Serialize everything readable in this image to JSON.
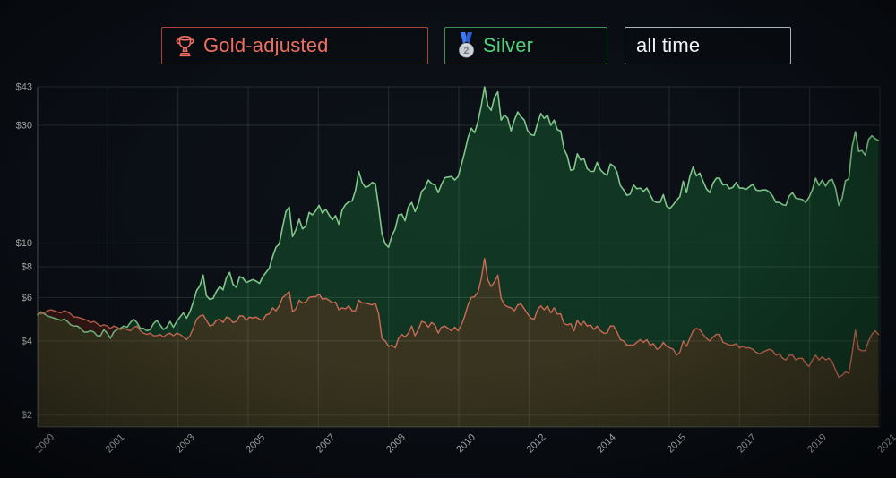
{
  "toolbar": {
    "buttons": [
      {
        "label": "Gold-adjusted",
        "icon": "trophy-icon",
        "text_color": "#ef6e62",
        "border_color": "#aa413c"
      },
      {
        "label": "Silver",
        "icon": "silver-medal-icon",
        "text_color": "#4ed07c",
        "border_color": "#3e8f58"
      },
      {
        "label": "all time",
        "icon": null,
        "text_color": "#f2f5f5",
        "border_color": "#a9b2b6"
      }
    ]
  },
  "chart_data": {
    "type": "area",
    "x_start_year": 2000,
    "x_interval_months": 1,
    "x_domain": [
      2000,
      2021.2
    ],
    "grid": true,
    "legend_position": "top",
    "grid_color": "rgba(173,190,180,0.16)",
    "axis_color": "rgba(173,190,180,0.32)",
    "tick_text_color": "#bfc5c0",
    "x_axis": {
      "ticks": [
        {
          "t": 2000.0,
          "label": "2000"
        },
        {
          "t": 2001.767,
          "label": "2001"
        },
        {
          "t": 2003.533,
          "label": "2003"
        },
        {
          "t": 2005.3,
          "label": "2005"
        },
        {
          "t": 2007.067,
          "label": "2007"
        },
        {
          "t": 2008.833,
          "label": "2008"
        },
        {
          "t": 2010.6,
          "label": "2010"
        },
        {
          "t": 2012.367,
          "label": "2012"
        },
        {
          "t": 2014.133,
          "label": "2014"
        },
        {
          "t": 2015.9,
          "label": "2015"
        },
        {
          "t": 2017.667,
          "label": "2017"
        },
        {
          "t": 2019.433,
          "label": "2019"
        },
        {
          "t": 2021.2,
          "label": "2021"
        }
      ]
    },
    "y_axis": {
      "scale": "log",
      "ylim": [
        1.79,
        43
      ],
      "ticks": [
        {
          "v": 43,
          "label": "$43"
        },
        {
          "v": 30,
          "label": "$30"
        },
        {
          "v": 10,
          "label": "$10"
        },
        {
          "v": 8,
          "label": "$8"
        },
        {
          "v": 6,
          "label": "$6"
        },
        {
          "v": 4,
          "label": "$4"
        },
        {
          "v": 2,
          "label": "$2"
        }
      ]
    },
    "series": [
      {
        "name": "Silver",
        "line_color": "#80c78a",
        "line_width": 1.6,
        "fill_color": "rgba(30,145,66,0.30)",
        "values": [
          5.1,
          5.25,
          5.15,
          5.05,
          5.0,
          4.95,
          4.9,
          4.85,
          4.9,
          4.8,
          4.65,
          4.6,
          4.6,
          4.5,
          4.35,
          4.35,
          4.4,
          4.35,
          4.2,
          4.2,
          4.45,
          4.3,
          4.1,
          4.35,
          4.45,
          4.5,
          4.6,
          4.55,
          4.75,
          4.9,
          4.75,
          4.5,
          4.5,
          4.4,
          4.45,
          4.7,
          4.85,
          4.65,
          4.45,
          4.55,
          4.8,
          4.55,
          4.8,
          5.0,
          5.2,
          4.95,
          5.25,
          5.75,
          6.4,
          6.7,
          7.4,
          6.1,
          5.9,
          5.95,
          6.35,
          6.65,
          6.45,
          7.2,
          7.6,
          6.8,
          6.6,
          7.3,
          7.2,
          6.9,
          7.0,
          7.1,
          7.0,
          6.85,
          7.3,
          7.6,
          7.9,
          8.8,
          9.6,
          9.9,
          11.6,
          13.4,
          14.0,
          10.6,
          11.3,
          12.5,
          11.4,
          11.7,
          13.3,
          13.0,
          13.5,
          14.2,
          13.2,
          13.7,
          13.0,
          12.4,
          12.9,
          11.9,
          13.6,
          14.3,
          14.7,
          14.8,
          16.3,
          19.5,
          17.6,
          16.8,
          17.0,
          17.6,
          17.4,
          14.0,
          10.9,
          9.9,
          9.6,
          10.7,
          11.4,
          13.0,
          13.1,
          12.3,
          14.0,
          14.6,
          13.4,
          14.4,
          16.2,
          16.7,
          18.0,
          17.4,
          17.2,
          16.0,
          17.3,
          18.4,
          18.5,
          18.6,
          18.0,
          18.6,
          20.8,
          23.4,
          26.7,
          29.2,
          28.0,
          31.0,
          36.0,
          43.0,
          36.0,
          34.5,
          39.0,
          41.0,
          31.5,
          33.0,
          32.0,
          28.5,
          31.5,
          34.0,
          32.5,
          31.5,
          28.5,
          27.5,
          27.3,
          30.5,
          33.5,
          32.0,
          33.0,
          30.0,
          31.5,
          28.8,
          28.5,
          24.0,
          22.5,
          19.7,
          19.9,
          23.0,
          21.7,
          22.0,
          20.0,
          19.5,
          19.5,
          21.2,
          19.8,
          19.2,
          18.8,
          20.9,
          20.5,
          19.4,
          17.1,
          16.4,
          15.6,
          15.8,
          17.2,
          16.6,
          16.7,
          16.2,
          16.7,
          15.7,
          14.8,
          14.6,
          14.6,
          15.7,
          14.1,
          13.8,
          14.3,
          14.9,
          15.4,
          17.8,
          16.0,
          18.6,
          20.3,
          18.7,
          19.2,
          17.8,
          16.6,
          16.0,
          17.5,
          18.3,
          18.3,
          17.2,
          17.3,
          16.6,
          16.8,
          17.6,
          16.7,
          16.7,
          16.5,
          16.9,
          17.3,
          16.4,
          16.3,
          16.4,
          16.4,
          16.1,
          15.5,
          14.6,
          14.6,
          14.3,
          14.2,
          15.5,
          16.0,
          15.2,
          15.1,
          15.0,
          14.6,
          15.3,
          16.4,
          18.3,
          17.1,
          18.0,
          17.0,
          17.9,
          18.1,
          16.7,
          14.2,
          15.2,
          17.9,
          18.2,
          24.5,
          28.3,
          23.5,
          23.7,
          22.7,
          26.3,
          27.2,
          26.5,
          26.0
        ]
      },
      {
        "name": "Gold-adjusted",
        "line_color": "#cd6a55",
        "line_width": 1.4,
        "fill_color": "rgba(150,50,25,0.30)",
        "values": [
          5.25,
          5.15,
          5.2,
          5.3,
          5.35,
          5.3,
          5.25,
          5.2,
          5.3,
          5.25,
          5.15,
          5.0,
          5.0,
          4.95,
          4.9,
          4.85,
          4.75,
          4.8,
          4.7,
          4.6,
          4.65,
          4.6,
          4.5,
          4.6,
          4.55,
          4.45,
          4.5,
          4.45,
          4.4,
          4.55,
          4.6,
          4.4,
          4.3,
          4.25,
          4.3,
          4.2,
          4.2,
          4.25,
          4.15,
          4.25,
          4.3,
          4.2,
          4.3,
          4.25,
          4.15,
          4.05,
          4.2,
          4.5,
          4.9,
          5.05,
          5.1,
          4.85,
          4.6,
          4.65,
          4.85,
          4.9,
          4.75,
          5.0,
          4.95,
          4.75,
          4.8,
          5.05,
          5.05,
          4.85,
          5.0,
          4.95,
          5.0,
          4.9,
          4.85,
          5.1,
          5.15,
          5.45,
          5.3,
          5.55,
          6.0,
          6.15,
          6.35,
          5.25,
          5.4,
          5.85,
          5.7,
          5.75,
          6.0,
          6.05,
          6.05,
          6.2,
          5.9,
          5.95,
          5.85,
          5.7,
          5.75,
          5.35,
          5.45,
          5.4,
          5.55,
          5.3,
          5.3,
          5.85,
          5.7,
          5.7,
          5.65,
          5.6,
          5.7,
          5.15,
          4.1,
          4.0,
          3.8,
          3.85,
          3.75,
          4.1,
          4.25,
          4.15,
          4.3,
          4.6,
          4.2,
          4.45,
          4.8,
          4.75,
          4.55,
          4.75,
          4.65,
          4.3,
          4.55,
          4.6,
          4.5,
          4.4,
          4.55,
          4.4,
          4.65,
          5.05,
          5.6,
          6.0,
          6.05,
          6.3,
          7.15,
          8.65,
          7.05,
          6.65,
          6.95,
          7.4,
          5.95,
          5.6,
          5.5,
          5.45,
          5.3,
          5.6,
          5.65,
          5.4,
          5.15,
          4.95,
          4.9,
          5.35,
          5.55,
          5.35,
          5.55,
          5.2,
          5.45,
          5.15,
          5.15,
          4.7,
          4.65,
          4.7,
          4.4,
          4.85,
          4.65,
          4.8,
          4.6,
          4.65,
          4.45,
          4.6,
          4.4,
          4.3,
          4.3,
          4.6,
          4.6,
          4.35,
          4.05,
          4.0,
          3.85,
          3.85,
          3.85,
          3.95,
          4.05,
          3.95,
          4.05,
          3.85,
          3.9,
          3.7,
          3.75,
          3.95,
          3.8,
          3.75,
          3.7,
          3.5,
          3.6,
          4.0,
          3.8,
          4.1,
          4.4,
          4.5,
          4.45,
          4.25,
          4.1,
          4.0,
          4.15,
          4.25,
          4.25,
          3.95,
          3.9,
          3.85,
          3.85,
          3.9,
          3.75,
          3.8,
          3.75,
          3.75,
          3.7,
          3.6,
          3.55,
          3.6,
          3.65,
          3.7,
          3.65,
          3.5,
          3.55,
          3.4,
          3.35,
          3.5,
          3.5,
          3.35,
          3.4,
          3.4,
          3.25,
          3.15,
          3.35,
          3.5,
          3.35,
          3.45,
          3.35,
          3.4,
          3.3,
          3.05,
          2.85,
          2.9,
          3.0,
          2.95,
          3.55,
          4.42,
          3.7,
          3.65,
          3.65,
          4.0,
          4.25,
          4.4,
          4.25
        ]
      }
    ]
  }
}
